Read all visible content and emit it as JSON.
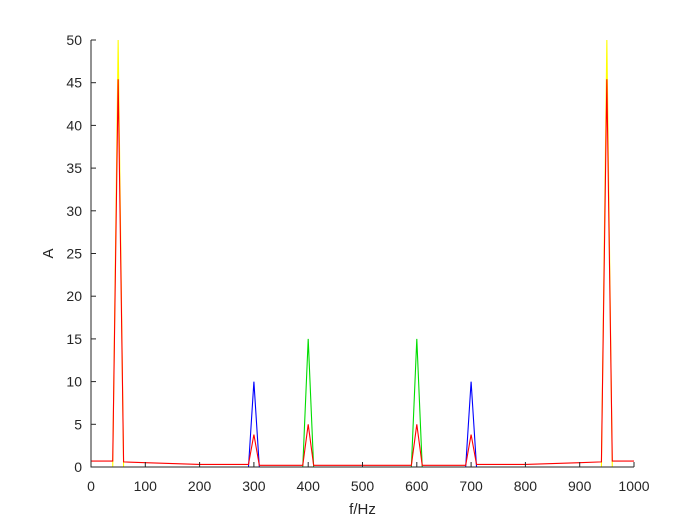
{
  "chart_data": {
    "type": "line",
    "xlabel": "f/Hz",
    "ylabel": "A",
    "xlim": [
      0,
      1000
    ],
    "ylim": [
      0,
      50
    ],
    "xticks": [
      0,
      100,
      200,
      300,
      400,
      500,
      600,
      700,
      800,
      900,
      1000
    ],
    "yticks": [
      0,
      5,
      10,
      15,
      20,
      25,
      30,
      35,
      40,
      45,
      50
    ],
    "grid": false,
    "series": [
      {
        "color": "#ffff00",
        "points": [
          [
            0,
            0
          ],
          [
            40,
            0
          ],
          [
            50,
            50
          ],
          [
            60,
            0
          ],
          [
            940,
            0
          ],
          [
            950,
            50
          ],
          [
            960,
            0
          ],
          [
            1000,
            0
          ]
        ]
      },
      {
        "color": "#0000ff",
        "points": [
          [
            0,
            0
          ],
          [
            290,
            0
          ],
          [
            300,
            10
          ],
          [
            310,
            0
          ],
          [
            690,
            0
          ],
          [
            700,
            10
          ],
          [
            710,
            0
          ],
          [
            1000,
            0
          ]
        ]
      },
      {
        "color": "#00dd00",
        "points": [
          [
            0,
            0
          ],
          [
            390,
            0
          ],
          [
            400,
            15
          ],
          [
            410,
            0
          ],
          [
            590,
            0
          ],
          [
            600,
            15
          ],
          [
            610,
            0
          ],
          [
            1000,
            0
          ]
        ]
      },
      {
        "color": "#ff0000",
        "points": [
          [
            0,
            0.7
          ],
          [
            40,
            0.7
          ],
          [
            50,
            45.4
          ],
          [
            60,
            0.6
          ],
          [
            100,
            0.5
          ],
          [
            200,
            0.3
          ],
          [
            290,
            0.3
          ],
          [
            300,
            3.8
          ],
          [
            310,
            0.2
          ],
          [
            390,
            0.2
          ],
          [
            400,
            5
          ],
          [
            410,
            0.2
          ],
          [
            590,
            0.2
          ],
          [
            600,
            5
          ],
          [
            610,
            0.2
          ],
          [
            690,
            0.2
          ],
          [
            700,
            3.8
          ],
          [
            710,
            0.3
          ],
          [
            800,
            0.3
          ],
          [
            900,
            0.5
          ],
          [
            940,
            0.6
          ],
          [
            950,
            45.4
          ],
          [
            960,
            0.7
          ],
          [
            1000,
            0.7
          ]
        ]
      }
    ]
  }
}
